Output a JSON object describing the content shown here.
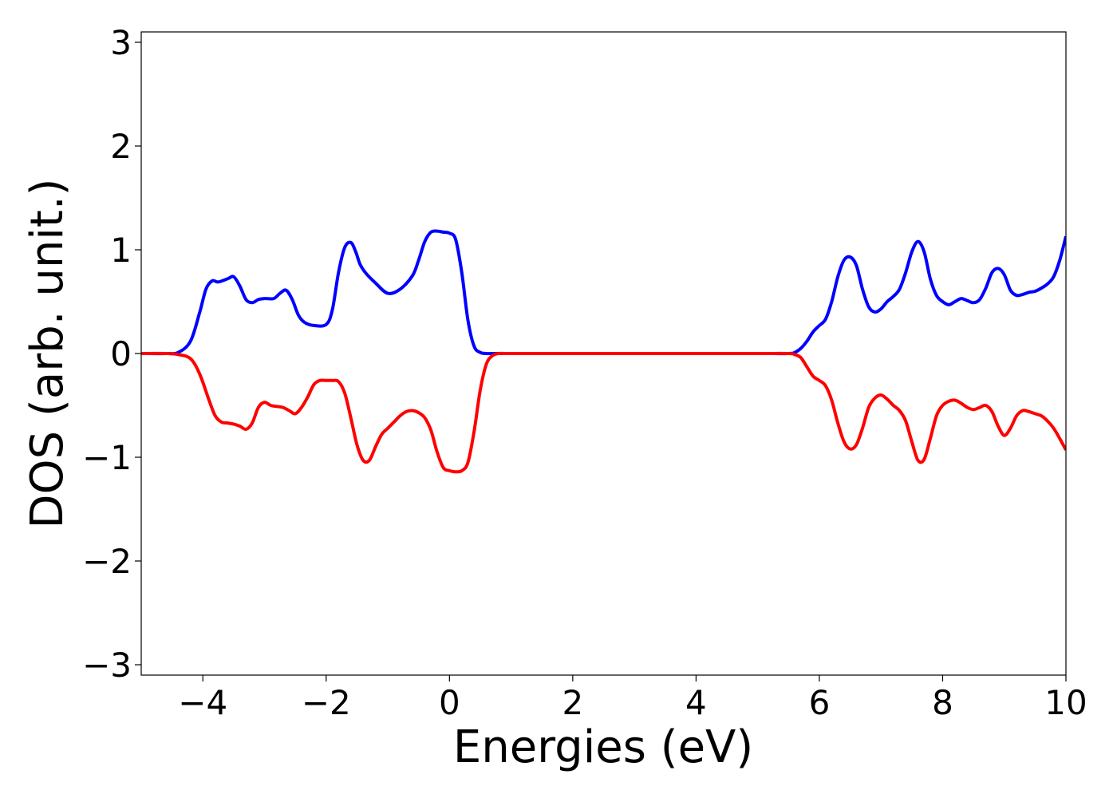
{
  "chart_data": {
    "type": "line",
    "title": "",
    "xlabel": "Energies (eV)",
    "ylabel": "DOS (arb. unit.)",
    "xlim": [
      -5,
      10
    ],
    "ylim": [
      -3.1,
      3.1
    ],
    "x_ticks": [
      -4,
      -2,
      0,
      2,
      4,
      6,
      8,
      10
    ],
    "x_tick_labels": [
      "−4",
      "−2",
      "0",
      "2",
      "4",
      "6",
      "8",
      "10"
    ],
    "y_ticks": [
      3,
      2,
      1,
      0,
      -1,
      -2,
      -3
    ],
    "y_tick_labels": [
      "3",
      "2",
      "1",
      "0",
      "−1",
      "−2",
      "−3"
    ],
    "grid": false,
    "legend": "none",
    "series": [
      {
        "color": "#0000ff",
        "x": [
          -5.0,
          -4.6,
          -4.4,
          -4.2,
          -4.05,
          -3.95,
          -3.85,
          -3.75,
          -3.6,
          -3.5,
          -3.4,
          -3.3,
          -3.2,
          -3.1,
          -3.0,
          -2.85,
          -2.75,
          -2.65,
          -2.55,
          -2.45,
          -2.35,
          -2.2,
          -2.0,
          -1.9,
          -1.8,
          -1.7,
          -1.6,
          -1.52,
          -1.45,
          -1.35,
          -1.2,
          -1.0,
          -0.8,
          -0.6,
          -0.5,
          -0.4,
          -0.3,
          -0.2,
          -0.1,
          0.0,
          0.1,
          0.2,
          0.3,
          0.4,
          0.5,
          0.6,
          0.8,
          1.0,
          2.0,
          3.0,
          4.0,
          5.0,
          5.5,
          5.6,
          5.7,
          5.8,
          5.9,
          6.0,
          6.1,
          6.2,
          6.3,
          6.4,
          6.5,
          6.6,
          6.7,
          6.8,
          6.9,
          7.0,
          7.1,
          7.2,
          7.3,
          7.4,
          7.5,
          7.6,
          7.7,
          7.8,
          7.9,
          8.0,
          8.1,
          8.2,
          8.3,
          8.4,
          8.5,
          8.6,
          8.7,
          8.8,
          8.9,
          9.0,
          9.1,
          9.2,
          9.3,
          9.4,
          9.5,
          9.6,
          9.7,
          9.8,
          9.9,
          10.0
        ],
        "values": [
          0.0,
          0.0,
          0.01,
          0.12,
          0.4,
          0.62,
          0.7,
          0.69,
          0.72,
          0.74,
          0.65,
          0.52,
          0.49,
          0.52,
          0.53,
          0.53,
          0.58,
          0.61,
          0.52,
          0.37,
          0.3,
          0.27,
          0.28,
          0.42,
          0.78,
          1.02,
          1.07,
          0.98,
          0.86,
          0.77,
          0.68,
          0.58,
          0.62,
          0.75,
          0.9,
          1.08,
          1.17,
          1.18,
          1.17,
          1.16,
          1.1,
          0.78,
          0.32,
          0.07,
          0.01,
          0.0,
          0.0,
          0.0,
          0.0,
          0.0,
          0.0,
          0.0,
          0.0,
          0.01,
          0.05,
          0.12,
          0.21,
          0.27,
          0.33,
          0.5,
          0.74,
          0.9,
          0.93,
          0.85,
          0.62,
          0.45,
          0.4,
          0.43,
          0.5,
          0.55,
          0.62,
          0.78,
          0.98,
          1.08,
          0.98,
          0.72,
          0.56,
          0.5,
          0.47,
          0.5,
          0.53,
          0.51,
          0.49,
          0.52,
          0.63,
          0.78,
          0.82,
          0.76,
          0.61,
          0.56,
          0.57,
          0.59,
          0.6,
          0.63,
          0.67,
          0.74,
          0.9,
          1.13
        ]
      },
      {
        "color": "#ff0000",
        "x": [
          -5.0,
          -4.6,
          -4.4,
          -4.2,
          -4.05,
          -3.9,
          -3.8,
          -3.7,
          -3.6,
          -3.5,
          -3.4,
          -3.3,
          -3.2,
          -3.1,
          -3.0,
          -2.9,
          -2.8,
          -2.7,
          -2.6,
          -2.5,
          -2.4,
          -2.3,
          -2.2,
          -2.1,
          -2.0,
          -1.9,
          -1.8,
          -1.7,
          -1.6,
          -1.5,
          -1.4,
          -1.3,
          -1.2,
          -1.1,
          -1.0,
          -0.9,
          -0.8,
          -0.7,
          -0.6,
          -0.5,
          -0.4,
          -0.3,
          -0.2,
          -0.1,
          0.0,
          0.1,
          0.2,
          0.3,
          0.4,
          0.5,
          0.6,
          0.7,
          0.8,
          0.9,
          1.0,
          2.0,
          3.0,
          4.0,
          5.0,
          5.5,
          5.6,
          5.7,
          5.8,
          5.9,
          6.0,
          6.1,
          6.2,
          6.3,
          6.4,
          6.5,
          6.6,
          6.7,
          6.8,
          6.9,
          7.0,
          7.1,
          7.2,
          7.3,
          7.4,
          7.5,
          7.6,
          7.7,
          7.8,
          7.9,
          8.0,
          8.1,
          8.2,
          8.3,
          8.4,
          8.5,
          8.6,
          8.7,
          8.8,
          8.9,
          9.0,
          9.1,
          9.2,
          9.3,
          9.4,
          9.5,
          9.6,
          9.7,
          9.8,
          9.9,
          10.0
        ],
        "values": [
          0.0,
          0.0,
          -0.01,
          -0.05,
          -0.2,
          -0.45,
          -0.6,
          -0.66,
          -0.67,
          -0.68,
          -0.7,
          -0.73,
          -0.67,
          -0.52,
          -0.47,
          -0.5,
          -0.51,
          -0.52,
          -0.55,
          -0.58,
          -0.52,
          -0.42,
          -0.3,
          -0.26,
          -0.26,
          -0.26,
          -0.27,
          -0.38,
          -0.62,
          -0.88,
          -1.03,
          -1.03,
          -0.9,
          -0.78,
          -0.72,
          -0.66,
          -0.6,
          -0.56,
          -0.55,
          -0.57,
          -0.62,
          -0.74,
          -0.95,
          -1.1,
          -1.13,
          -1.14,
          -1.13,
          -1.05,
          -0.75,
          -0.35,
          -0.1,
          -0.02,
          0.0,
          0.0,
          0.0,
          0.0,
          0.0,
          0.0,
          0.0,
          0.0,
          -0.01,
          -0.04,
          -0.13,
          -0.22,
          -0.26,
          -0.31,
          -0.45,
          -0.67,
          -0.85,
          -0.92,
          -0.88,
          -0.72,
          -0.52,
          -0.43,
          -0.4,
          -0.44,
          -0.5,
          -0.55,
          -0.65,
          -0.85,
          -1.03,
          -1.02,
          -0.82,
          -0.6,
          -0.5,
          -0.46,
          -0.45,
          -0.48,
          -0.52,
          -0.54,
          -0.52,
          -0.5,
          -0.56,
          -0.7,
          -0.79,
          -0.72,
          -0.6,
          -0.55,
          -0.56,
          -0.58,
          -0.6,
          -0.65,
          -0.72,
          -0.82,
          -0.93
        ]
      }
    ]
  }
}
